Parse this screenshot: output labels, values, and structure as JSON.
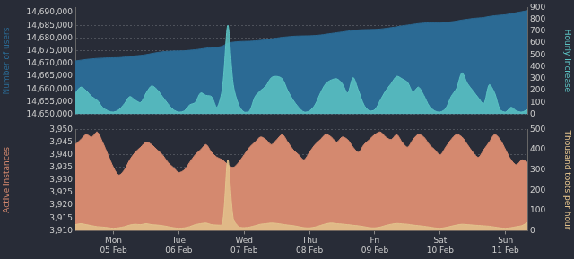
{
  "chart_data": [
    {
      "type": "area",
      "tick_labels": "y",
      "grid": true,
      "ylabel": "Number of users",
      "y2label": "Hourly increase",
      "categories": [
        null,
        null,
        null,
        null,
        null,
        null,
        null,
        "Mon 05 Feb",
        null,
        null,
        null,
        null,
        null,
        null,
        null,
        null,
        null,
        null,
        null,
        "Tue 06 Feb",
        null,
        null,
        null,
        null,
        null,
        null,
        null,
        null,
        null,
        null,
        null,
        "Wed 07 Feb",
        null,
        null,
        null,
        null,
        null,
        null,
        null,
        null,
        null,
        null,
        null,
        "Thu 08 Feb",
        null,
        null,
        null,
        null,
        null,
        null,
        null,
        null,
        null,
        null,
        null,
        "Fri 09 Feb",
        null,
        null,
        null,
        null,
        null,
        null,
        null,
        null,
        null,
        null,
        null,
        "Sat 10 Feb",
        null,
        null,
        null,
        null,
        null,
        null,
        null,
        null,
        null,
        null,
        null,
        "Sun 11 Feb",
        null,
        null,
        null,
        null
      ],
      "ylim": [
        14650000,
        14692000
      ],
      "yticks": [
        {
          "value": 14650000,
          "label": "14,650,000"
        },
        {
          "value": 14655000,
          "label": "14,655,000"
        },
        {
          "value": 14660000,
          "label": "14,660,000"
        },
        {
          "value": 14665000,
          "label": "14,665,000"
        },
        {
          "value": 14670000,
          "label": "14,670,000"
        },
        {
          "value": 14675000,
          "label": "14,675,000"
        },
        {
          "value": 14680000,
          "label": "14,680,000"
        },
        {
          "value": 14685000,
          "label": "14,685,000"
        },
        {
          "value": 14690000,
          "label": "14,690,000"
        }
      ],
      "y2lim": [
        0,
        900
      ],
      "y2ticks": [
        0,
        100,
        200,
        300,
        400,
        500,
        600,
        700,
        800,
        900
      ],
      "series": [
        {
          "name": "Number of users",
          "color": "#2b6a94",
          "values": [
            14671000,
            14671300,
            14671600,
            14671800,
            14672000,
            14672100,
            14672200,
            14672250,
            14672300,
            14672500,
            14672800,
            14673000,
            14673200,
            14673500,
            14673900,
            14674300,
            14674600,
            14674800,
            14674900,
            14674950,
            14675000,
            14675200,
            14675400,
            14675700,
            14676000,
            14676300,
            14676400,
            14676800,
            14678000,
            14678400,
            14678600,
            14678700,
            14678750,
            14678900,
            14679100,
            14679400,
            14679700,
            14680000,
            14680300,
            14680500,
            14680700,
            14680800,
            14680850,
            14680900,
            14681000,
            14681200,
            14681500,
            14681800,
            14682100,
            14682400,
            14682700,
            14683000,
            14683200,
            14683300,
            14683350,
            14683400,
            14683550,
            14683800,
            14684100,
            14684400,
            14684800,
            14685100,
            14685400,
            14685700,
            14685900,
            14686000,
            14686050,
            14686100,
            14686200,
            14686400,
            14686700,
            14687100,
            14687400,
            14687700,
            14687900,
            14688100,
            14688500,
            14688800,
            14689000,
            14689200,
            14689600,
            14690000,
            14690400,
            14690800
          ]
        },
        {
          "name": "Hourly increase",
          "color": "#5cc3c3",
          "axis": "y2",
          "values": [
            180,
            230,
            200,
            150,
            120,
            60,
            30,
            20,
            40,
            90,
            150,
            120,
            100,
            180,
            240,
            210,
            150,
            90,
            40,
            20,
            30,
            80,
            100,
            180,
            160,
            150,
            60,
            220,
            750,
            250,
            80,
            20,
            30,
            150,
            200,
            240,
            310,
            320,
            300,
            200,
            120,
            60,
            20,
            30,
            80,
            180,
            260,
            290,
            300,
            260,
            180,
            310,
            200,
            80,
            30,
            40,
            120,
            200,
            260,
            320,
            300,
            270,
            190,
            230,
            160,
            70,
            30,
            20,
            50,
            150,
            220,
            350,
            260,
            200,
            140,
            90,
            250,
            180,
            40,
            20,
            60,
            30,
            20,
            40
          ]
        }
      ]
    },
    {
      "type": "area",
      "grid": true,
      "ylabel": "Active instances",
      "y2label": "Thousand toots per hour",
      "categories": [
        null,
        null,
        null,
        null,
        null,
        null,
        null,
        "Mon 05 Feb",
        null,
        null,
        null,
        null,
        null,
        null,
        null,
        null,
        null,
        null,
        null,
        "Tue 06 Feb",
        null,
        null,
        null,
        null,
        null,
        null,
        null,
        null,
        null,
        null,
        null,
        "Wed 07 Feb",
        null,
        null,
        null,
        null,
        null,
        null,
        null,
        null,
        null,
        null,
        null,
        "Thu 08 Feb",
        null,
        null,
        null,
        null,
        null,
        null,
        null,
        null,
        null,
        null,
        null,
        "Fri 09 Feb",
        null,
        null,
        null,
        null,
        null,
        null,
        null,
        null,
        null,
        null,
        null,
        "Sat 10 Feb",
        null,
        null,
        null,
        null,
        null,
        null,
        null,
        null,
        null,
        null,
        null,
        "Sun 11 Feb",
        null,
        null,
        null,
        null
      ],
      "ylim": [
        3910,
        3950
      ],
      "yticks": [
        {
          "value": 3910,
          "label": "3,910"
        },
        {
          "value": 3915,
          "label": "3,915"
        },
        {
          "value": 3920,
          "label": "3,920"
        },
        {
          "value": 3925,
          "label": "3,925"
        },
        {
          "value": 3930,
          "label": "3,930"
        },
        {
          "value": 3935,
          "label": "3,935"
        },
        {
          "value": 3940,
          "label": "3,940"
        },
        {
          "value": 3945,
          "label": "3,945"
        },
        {
          "value": 3950,
          "label": "3,950"
        }
      ],
      "y2lim": [
        0,
        500
      ],
      "y2ticks": [
        0,
        100,
        200,
        300,
        400,
        500
      ],
      "series": [
        {
          "name": "Active instances",
          "color": "#d4896f",
          "values": [
            3944,
            3946,
            3948,
            3947,
            3949,
            3945,
            3940,
            3935,
            3932,
            3934,
            3938,
            3941,
            3943,
            3945,
            3944,
            3942,
            3940,
            3937,
            3935,
            3933,
            3934,
            3937,
            3940,
            3942,
            3944,
            3941,
            3939,
            3938,
            3936,
            3935,
            3937,
            3940,
            3943,
            3945,
            3947,
            3946,
            3944,
            3946,
            3948,
            3945,
            3942,
            3940,
            3938,
            3941,
            3944,
            3946,
            3948,
            3947,
            3945,
            3947,
            3946,
            3943,
            3941,
            3944,
            3946,
            3948,
            3949,
            3947,
            3946,
            3948,
            3945,
            3943,
            3946,
            3948,
            3947,
            3944,
            3942,
            3940,
            3943,
            3946,
            3948,
            3947,
            3944,
            3941,
            3939,
            3942,
            3945,
            3948,
            3946,
            3942,
            3938,
            3936,
            3938,
            3937
          ]
        },
        {
          "name": "Thousand toots per hour",
          "color": "#e2c28c",
          "axis": "y2",
          "values": [
            30,
            35,
            30,
            25,
            20,
            18,
            15,
            12,
            15,
            20,
            28,
            32,
            30,
            35,
            30,
            28,
            25,
            20,
            15,
            12,
            14,
            20,
            30,
            35,
            38,
            30,
            28,
            32,
            350,
            60,
            20,
            15,
            18,
            25,
            32,
            35,
            38,
            36,
            32,
            28,
            25,
            20,
            15,
            14,
            18,
            26,
            34,
            38,
            35,
            33,
            30,
            27,
            24,
            20,
            15,
            14,
            18,
            26,
            32,
            36,
            34,
            32,
            28,
            25,
            22,
            18,
            14,
            12,
            16,
            22,
            28,
            32,
            30,
            28,
            26,
            24,
            22,
            18,
            14,
            12,
            15,
            20,
            25,
            40
          ]
        }
      ]
    }
  ]
}
